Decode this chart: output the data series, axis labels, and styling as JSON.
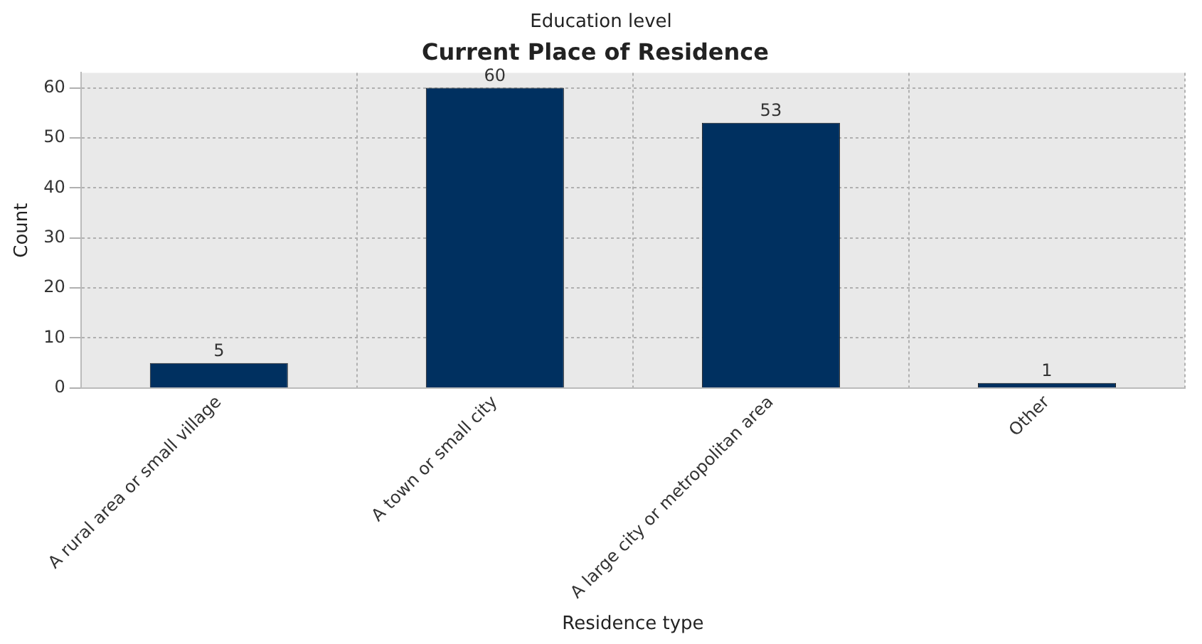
{
  "chart_data": {
    "type": "bar",
    "title": "Current Place of Residence",
    "subtitle": "Education level",
    "xlabel": "Residence type",
    "ylabel": "Count",
    "categories": [
      "A rural area or small village",
      "A town or small city",
      "A large city or metropolitan area",
      "Other"
    ],
    "values": [
      5,
      60,
      53,
      1
    ],
    "color": "#003060",
    "ylim": [
      0,
      63
    ],
    "yticks": [
      0,
      10,
      20,
      30,
      40,
      50,
      60
    ],
    "grid": true,
    "data_labels": true
  }
}
